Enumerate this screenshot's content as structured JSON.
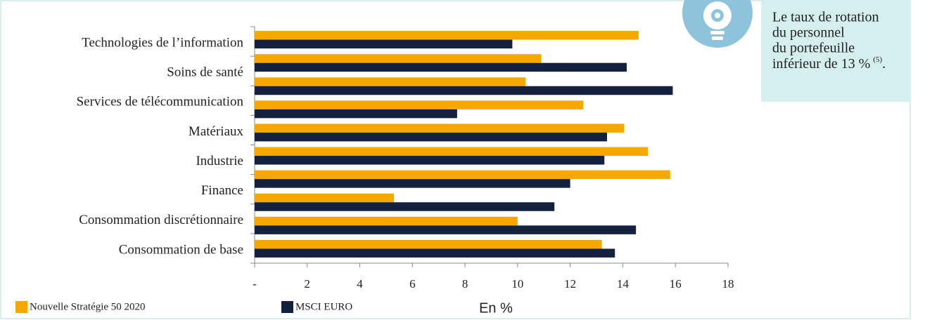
{
  "chart_data": {
    "type": "hbar",
    "categories": [
      "Technologies de l’information",
      "Soins de santé",
      "Services de télécommunication",
      null,
      "Matériaux",
      "Industrie",
      "Finance",
      null,
      "Consommation discrétionnaire",
      "Consommation de base"
    ],
    "series": [
      {
        "name": "Nouvelle Stratégie 50 2020",
        "color": "#f5a800",
        "values": [
          14.6,
          10.9,
          10.3,
          12.5,
          14.05,
          14.95,
          15.8,
          5.3,
          10.0,
          13.2
        ]
      },
      {
        "name": "MSCI EURO",
        "color": "#13213f",
        "values": [
          9.8,
          14.15,
          15.9,
          7.7,
          13.4,
          13.3,
          12.0,
          11.4,
          14.5,
          13.7
        ]
      }
    ],
    "xlim": [
      0,
      18
    ],
    "xticks": [
      {
        "value": 0,
        "label": "-"
      },
      2,
      4,
      6,
      8,
      10,
      12,
      14,
      16,
      18
    ],
    "xlabel": "En %",
    "legend": "bottom-left",
    "callout": {
      "lines": [
        "Le taux de rotation",
        "du personnel",
        "du portefeuille"
      ],
      "last": "inférieur de 13 %",
      "note": "(5)",
      "end": "."
    }
  }
}
